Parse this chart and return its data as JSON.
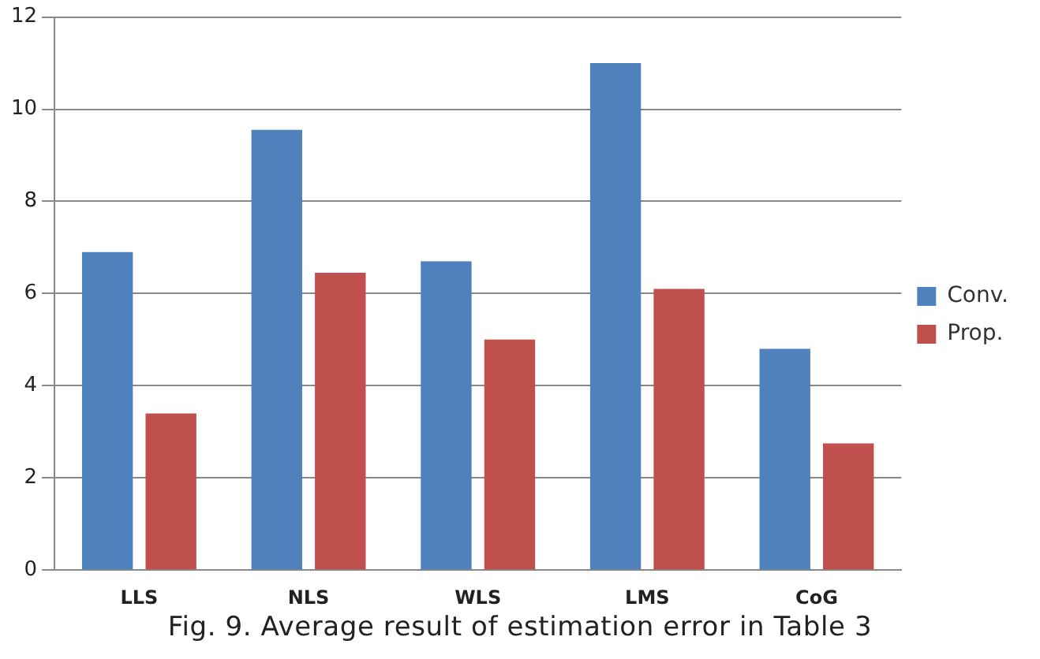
{
  "chart_data": {
    "type": "bar",
    "categories": [
      "LLS",
      "NLS",
      "WLS",
      "LMS",
      "CoG"
    ],
    "series": [
      {
        "name": "Conv.",
        "color": "#4f81bd",
        "values": [
          6.9,
          9.55,
          6.7,
          11.0,
          4.8
        ]
      },
      {
        "name": "Prop.",
        "color": "#c0504d",
        "values": [
          3.4,
          6.45,
          5.0,
          6.1,
          2.75
        ]
      }
    ],
    "ylim": [
      0,
      12
    ],
    "yticks": [
      0,
      2,
      4,
      6,
      8,
      10,
      12
    ],
    "grid": "y",
    "legend": "right",
    "annotations": [
      "Fig. 9. Average result of estimation error in Table 3"
    ]
  }
}
